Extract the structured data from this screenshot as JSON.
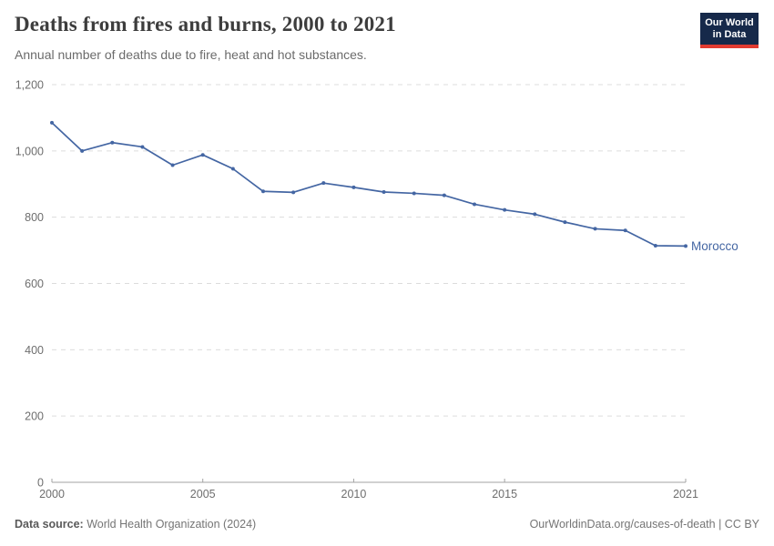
{
  "header": {
    "title": "Deaths from fires and burns, 2000 to 2021",
    "subtitle": "Annual number of deaths due to fire, heat and hot substances.",
    "logo": {
      "line1": "Our World",
      "line2": "in Data",
      "bg_color": "#16294a",
      "bar_color": "#e23b31"
    }
  },
  "footer": {
    "source_label": "Data source:",
    "source_value": " World Health Organization (2024)",
    "link_text": "OurWorldinData.org/causes-of-death | CC BY"
  },
  "colors": {
    "line": "#4466a3",
    "grid": "#dcdcdc",
    "axis": "#a3a3a3",
    "tick_text": "#6e6e6e",
    "end_label": "#4466a3"
  },
  "chart_data": {
    "type": "line",
    "title": "Deaths from fires and burns, 2000 to 2021",
    "subtitle": "Annual number of deaths due to fire, heat and hot substances.",
    "xlabel": "",
    "ylabel": "",
    "xlim": [
      2000,
      2021
    ],
    "ylim": [
      0,
      1200
    ],
    "grid": "horizontal-dashed",
    "legend_position": "end-of-line-label",
    "x": [
      2000,
      2001,
      2002,
      2003,
      2004,
      2005,
      2006,
      2007,
      2008,
      2009,
      2010,
      2011,
      2012,
      2013,
      2014,
      2015,
      2016,
      2017,
      2018,
      2019,
      2020,
      2021
    ],
    "series": [
      {
        "name": "Morocco",
        "color": "#4466a3",
        "values": [
          1085,
          1000,
          1025,
          1012,
          957,
          988,
          946,
          878,
          875,
          903,
          890,
          876,
          872,
          866,
          839,
          822,
          809,
          785,
          765,
          760,
          714,
          713
        ]
      }
    ],
    "xticks": [
      {
        "v": 2000,
        "label": "2000"
      },
      {
        "v": 2005,
        "label": "2005"
      },
      {
        "v": 2010,
        "label": "2010"
      },
      {
        "v": 2015,
        "label": "2015"
      },
      {
        "v": 2021,
        "label": "2021"
      }
    ],
    "yticks": [
      {
        "v": 0,
        "label": "0"
      },
      {
        "v": 200,
        "label": "200"
      },
      {
        "v": 400,
        "label": "400"
      },
      {
        "v": 600,
        "label": "600"
      },
      {
        "v": 800,
        "label": "800"
      },
      {
        "v": 1000,
        "label": "1,000"
      },
      {
        "v": 1200,
        "label": "1,200"
      }
    ]
  }
}
